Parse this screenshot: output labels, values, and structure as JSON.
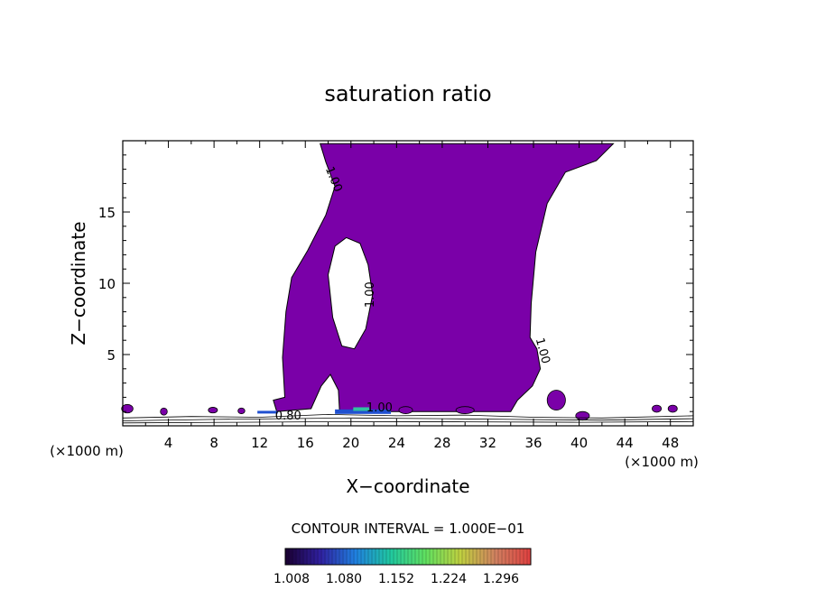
{
  "chart_data": {
    "type": "contour",
    "title": "saturation ratio",
    "xlabel": "X−coordinate",
    "ylabel": "Z−coordinate",
    "x_unit_left": "(×1000 m)",
    "x_unit_right": "(×1000 m)",
    "xlim": [
      0,
      50
    ],
    "ylim": [
      0,
      20
    ],
    "x_ticks": [
      4,
      8,
      12,
      16,
      20,
      24,
      28,
      32,
      36,
      40,
      44,
      48
    ],
    "y_ticks": [
      5,
      10,
      15
    ],
    "contour_interval_text": "CONTOUR INTERVAL = 1.000E−01",
    "fill_color": "#7a00a8",
    "colorbar": {
      "ticks": [
        "1.008",
        "1.080",
        "1.152",
        "1.224",
        "1.296"
      ],
      "colors": [
        "#1a0030",
        "#3020a0",
        "#2080e0",
        "#20c8a0",
        "#60e060",
        "#c0d040",
        "#d08060",
        "#e04040"
      ]
    },
    "contour_labels": [
      {
        "text": "1.00",
        "x": 18.2,
        "y": 17.2,
        "angle": 68
      },
      {
        "text": "1.00",
        "x": 22.0,
        "y": 9.2,
        "angle": -90
      },
      {
        "text": "1.00",
        "x": 36.5,
        "y": 5.2,
        "angle": 75
      },
      {
        "text": "0.80",
        "x": 14.5,
        "y": 0.45,
        "angle": 0
      },
      {
        "text": "1.00",
        "x": 22.5,
        "y": 1.0,
        "angle": 0
      }
    ],
    "saturated_region": [
      [
        17.3,
        19.8
      ],
      [
        43.0,
        19.8
      ],
      [
        41.5,
        18.6
      ],
      [
        38.8,
        17.8
      ],
      [
        37.2,
        15.6
      ],
      [
        36.2,
        12.2
      ],
      [
        35.8,
        8.6
      ],
      [
        35.7,
        6.2
      ],
      [
        36.3,
        5.4
      ],
      [
        36.6,
        4.0
      ],
      [
        35.9,
        2.8
      ],
      [
        34.6,
        1.8
      ],
      [
        34.0,
        1.0
      ],
      [
        19.0,
        1.0
      ],
      [
        18.9,
        2.5
      ],
      [
        18.2,
        3.6
      ],
      [
        17.4,
        2.8
      ],
      [
        16.5,
        1.2
      ],
      [
        13.5,
        1.0
      ],
      [
        13.2,
        1.8
      ],
      [
        14.2,
        2.0
      ],
      [
        14.0,
        4.8
      ],
      [
        14.3,
        8.0
      ],
      [
        14.8,
        10.4
      ],
      [
        16.2,
        12.3
      ],
      [
        17.8,
        14.8
      ],
      [
        18.6,
        16.8
      ],
      [
        17.8,
        18.5
      ],
      [
        17.3,
        19.8
      ]
    ],
    "unsaturated_hole": [
      [
        19.6,
        13.2
      ],
      [
        18.6,
        12.6
      ],
      [
        18.0,
        10.6
      ],
      [
        18.4,
        7.6
      ],
      [
        19.2,
        5.6
      ],
      [
        20.3,
        5.4
      ],
      [
        21.3,
        6.8
      ],
      [
        21.9,
        9.2
      ],
      [
        21.5,
        11.3
      ],
      [
        20.8,
        12.8
      ],
      [
        19.6,
        13.2
      ]
    ],
    "small_cells": [
      [
        38.0,
        1.8,
        0.8,
        0.7
      ],
      [
        0.4,
        1.2,
        0.5,
        0.3
      ],
      [
        3.6,
        1.0,
        0.3,
        0.25
      ],
      [
        7.9,
        1.1,
        0.4,
        0.2
      ],
      [
        10.4,
        1.05,
        0.3,
        0.2
      ],
      [
        40.3,
        0.7,
        0.6,
        0.3
      ],
      [
        46.8,
        1.2,
        0.4,
        0.25
      ],
      [
        48.2,
        1.2,
        0.4,
        0.25
      ],
      [
        24.8,
        1.1,
        0.6,
        0.25
      ],
      [
        30.0,
        1.1,
        0.8,
        0.25
      ]
    ],
    "ground_contours": [
      [
        [
          0,
          0.55
        ],
        [
          6,
          0.65
        ],
        [
          12,
          0.6
        ],
        [
          18,
          0.8
        ],
        [
          24,
          0.7
        ],
        [
          30,
          0.75
        ],
        [
          36,
          0.6
        ],
        [
          42,
          0.55
        ],
        [
          50,
          0.7
        ]
      ],
      [
        [
          0,
          0.35
        ],
        [
          8,
          0.45
        ],
        [
          14,
          0.5
        ],
        [
          20,
          0.55
        ],
        [
          28,
          0.5
        ],
        [
          34,
          0.45
        ],
        [
          42,
          0.4
        ],
        [
          50,
          0.5
        ]
      ],
      [
        [
          0,
          0.2
        ],
        [
          10,
          0.25
        ],
        [
          20,
          0.3
        ],
        [
          30,
          0.28
        ],
        [
          40,
          0.25
        ],
        [
          50,
          0.3
        ]
      ]
    ]
  }
}
